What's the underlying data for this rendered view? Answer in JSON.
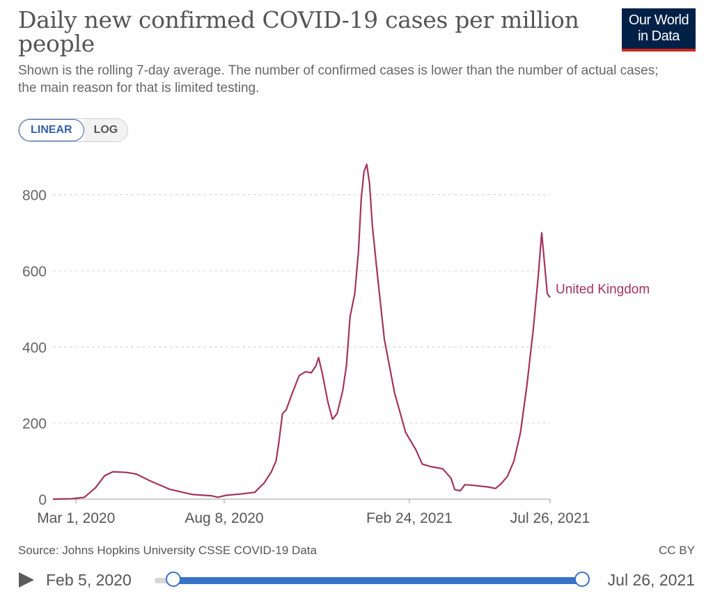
{
  "header": {
    "title": "Daily new confirmed COVID-19 cases per million people",
    "subtitle": "Shown is the rolling 7-day average. The number of confirmed cases is lower than the number of actual cases; the main reason for that is limited testing.",
    "logo_line1": "Our World",
    "logo_line2": "in Data"
  },
  "scale_toggle": {
    "linear_label": "LINEAR",
    "log_label": "LOG",
    "selected": "LINEAR"
  },
  "footer": {
    "source": "Source: Johns Hopkins University CSSE COVID-19 Data",
    "license": "CC BY"
  },
  "timeline": {
    "start_label": "Feb 5, 2020",
    "end_label": "Jul 26, 2021",
    "play_icon": "play-icon"
  },
  "colors": {
    "series": "#a2335d",
    "accent": "#3a72c8",
    "grid": "#d9d9d9",
    "logo_bg": "#002147",
    "logo_bar": "#ce261e"
  },
  "chart_data": {
    "type": "line",
    "title": "Daily new confirmed COVID-19 cases per million people",
    "xlabel": "",
    "ylabel": "",
    "x_range": [
      "2020-02-05",
      "2021-07-26"
    ],
    "ylim": [
      0,
      880
    ],
    "y_ticks": [
      0,
      200,
      400,
      600,
      800
    ],
    "x_ticks": [
      {
        "date": "2020-03-01",
        "label": "Mar 1, 2020"
      },
      {
        "date": "2020-08-08",
        "label": "Aug 8, 2020"
      },
      {
        "date": "2021-02-24",
        "label": "Feb 24, 2021"
      },
      {
        "date": "2021-07-26",
        "label": "Jul 26, 2021"
      }
    ],
    "grid": "horizontal-dashed",
    "series": [
      {
        "name": "United Kingdom",
        "color": "#a2335d",
        "points": [
          [
            "2020-02-05",
            0
          ],
          [
            "2020-02-25",
            1
          ],
          [
            "2020-03-10",
            5
          ],
          [
            "2020-03-22",
            30
          ],
          [
            "2020-04-01",
            62
          ],
          [
            "2020-04-10",
            72
          ],
          [
            "2020-04-25",
            70
          ],
          [
            "2020-05-05",
            66
          ],
          [
            "2020-05-20",
            48
          ],
          [
            "2020-06-10",
            26
          ],
          [
            "2020-07-05",
            12
          ],
          [
            "2020-07-25",
            9
          ],
          [
            "2020-08-01",
            5
          ],
          [
            "2020-08-10",
            10
          ],
          [
            "2020-08-28",
            14
          ],
          [
            "2020-09-10",
            18
          ],
          [
            "2020-09-20",
            42
          ],
          [
            "2020-09-28",
            72
          ],
          [
            "2020-10-03",
            100
          ],
          [
            "2020-10-06",
            148
          ],
          [
            "2020-10-10",
            225
          ],
          [
            "2020-10-14",
            235
          ],
          [
            "2020-10-20",
            275
          ],
          [
            "2020-10-28",
            325
          ],
          [
            "2020-11-04",
            335
          ],
          [
            "2020-11-10",
            332
          ],
          [
            "2020-11-15",
            350
          ],
          [
            "2020-11-18",
            372
          ],
          [
            "2020-11-22",
            330
          ],
          [
            "2020-11-28",
            255
          ],
          [
            "2020-12-03",
            210
          ],
          [
            "2020-12-08",
            225
          ],
          [
            "2020-12-14",
            285
          ],
          [
            "2020-12-18",
            350
          ],
          [
            "2020-12-22",
            480
          ],
          [
            "2020-12-27",
            540
          ],
          [
            "2020-12-31",
            650
          ],
          [
            "2021-01-03",
            790
          ],
          [
            "2021-01-06",
            860
          ],
          [
            "2021-01-09",
            880
          ],
          [
            "2021-01-12",
            830
          ],
          [
            "2021-01-15",
            720
          ],
          [
            "2021-01-20",
            600
          ],
          [
            "2021-01-28",
            420
          ],
          [
            "2021-02-08",
            280
          ],
          [
            "2021-02-20",
            175
          ],
          [
            "2021-03-03",
            130
          ],
          [
            "2021-03-10",
            92
          ],
          [
            "2021-03-20",
            85
          ],
          [
            "2021-04-01",
            80
          ],
          [
            "2021-04-10",
            55
          ],
          [
            "2021-04-14",
            25
          ],
          [
            "2021-04-20",
            22
          ],
          [
            "2021-04-25",
            38
          ],
          [
            "2021-05-05",
            36
          ],
          [
            "2021-05-20",
            32
          ],
          [
            "2021-05-28",
            28
          ],
          [
            "2021-06-03",
            40
          ],
          [
            "2021-06-10",
            60
          ],
          [
            "2021-06-17",
            100
          ],
          [
            "2021-06-24",
            175
          ],
          [
            "2021-07-01",
            300
          ],
          [
            "2021-07-08",
            450
          ],
          [
            "2021-07-13",
            580
          ],
          [
            "2021-07-17",
            700
          ],
          [
            "2021-07-20",
            620
          ],
          [
            "2021-07-23",
            540
          ],
          [
            "2021-07-26",
            530
          ]
        ]
      }
    ]
  }
}
